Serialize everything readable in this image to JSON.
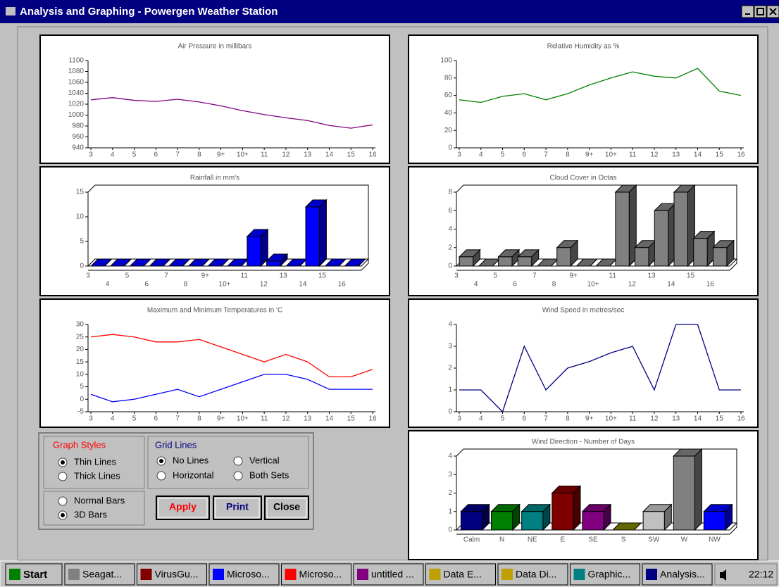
{
  "window": {
    "title": "Analysis and Graphing - Powergen Weather Station"
  },
  "charts": [
    {
      "type": "line",
      "title": "Air Pressure in millibars",
      "categories": [
        "3",
        "4",
        "5",
        "6",
        "7",
        "8",
        "9+",
        "10+",
        "11",
        "12",
        "13",
        "14",
        "15",
        "16"
      ],
      "series": [
        {
          "color": "#800080",
          "values": [
            1028,
            1032,
            1027,
            1025,
            1029,
            1024,
            1017,
            1008,
            1001,
            995,
            990,
            981,
            976,
            982
          ]
        }
      ],
      "ylim": [
        940,
        1100
      ],
      "yticks": [
        940,
        960,
        980,
        1000,
        1020,
        1040,
        1060,
        1080,
        1100
      ]
    },
    {
      "type": "line",
      "title": "Relative Humidity as %",
      "categories": [
        "3",
        "4",
        "5",
        "6",
        "7",
        "8",
        "9+",
        "10+",
        "11",
        "12",
        "13",
        "14",
        "15",
        "16"
      ],
      "series": [
        {
          "color": "#008000",
          "values": [
            55,
            52,
            59,
            62,
            55,
            62,
            72,
            80,
            87,
            82,
            80,
            91,
            65,
            60
          ]
        }
      ],
      "ylim": [
        0,
        100
      ],
      "yticks": [
        0,
        20,
        40,
        60,
        80,
        100
      ]
    },
    {
      "type": "bar3d",
      "title": "Rainfall in mm's",
      "categories": [
        "3",
        "4",
        "5",
        "6",
        "7",
        "8",
        "9+",
        "10+",
        "11",
        "12",
        "13",
        "14",
        "15",
        "16"
      ],
      "values": [
        0,
        0,
        0,
        0,
        0,
        0,
        0,
        0,
        6,
        1,
        0,
        12,
        0,
        0
      ],
      "color": "#0000ff",
      "ylim": [
        0,
        15
      ],
      "yticks": [
        0,
        5,
        10,
        15
      ]
    },
    {
      "type": "bar3d",
      "title": "Cloud Cover in Octas",
      "categories": [
        "3",
        "4",
        "5",
        "6",
        "7",
        "8",
        "9+",
        "10+",
        "11",
        "12",
        "13",
        "14",
        "15",
        "16"
      ],
      "values": [
        1,
        0,
        1,
        1,
        0,
        2,
        0,
        0,
        8,
        2,
        6,
        8,
        3,
        2
      ],
      "color": "#808080",
      "ylim": [
        0,
        8
      ],
      "yticks": [
        0,
        2,
        4,
        6,
        8
      ]
    },
    {
      "type": "line",
      "title": "Maximum and Minimum Temperatures in 'C",
      "categories": [
        "3",
        "4",
        "5",
        "6",
        "7",
        "8",
        "9+",
        "10+",
        "11",
        "12",
        "13",
        "14",
        "15",
        "16"
      ],
      "series": [
        {
          "color": "#ff0000",
          "values": [
            25,
            26,
            25,
            23,
            23,
            24,
            21,
            18,
            15,
            18,
            15,
            9,
            9,
            12
          ]
        },
        {
          "color": "#0000ff",
          "values": [
            2,
            -1,
            0,
            2,
            4,
            1,
            4,
            7,
            10,
            10,
            8,
            4,
            4,
            4
          ]
        }
      ],
      "ylim": [
        -5,
        30
      ],
      "yticks": [
        -5,
        0,
        5,
        10,
        15,
        20,
        25,
        30
      ]
    },
    {
      "type": "line",
      "title": "Wind Speed in metres/sec",
      "categories": [
        "3",
        "4",
        "5",
        "6",
        "7",
        "8",
        "9+",
        "10+",
        "11",
        "12",
        "13",
        "14",
        "15",
        "16"
      ],
      "series": [
        {
          "color": "#000080",
          "values": [
            1,
            1,
            0,
            3,
            1,
            2,
            2.3,
            2.7,
            3,
            1,
            4,
            4,
            1,
            1
          ]
        }
      ],
      "ylim": [
        0,
        4
      ],
      "yticks": [
        0,
        1,
        2,
        3,
        4
      ]
    },
    {
      "type": "bar3d",
      "title": "Wind Direction - Number of Days",
      "categories": [
        "Calm",
        "N",
        "NE",
        "E",
        "SE",
        "S",
        "SW",
        "W",
        "NW"
      ],
      "values": [
        1,
        1,
        1,
        2,
        1,
        0,
        1,
        4,
        1
      ],
      "colors": [
        "#000080",
        "#008000",
        "#008080",
        "#800000",
        "#800080",
        "#808000",
        "#c0c0c0",
        "#808080",
        "#0000ff"
      ],
      "ylim": [
        0,
        4
      ],
      "yticks": [
        0,
        1,
        2,
        3,
        4
      ]
    }
  ],
  "controls": {
    "graph_styles": {
      "title": "Graph Styles",
      "options": [
        {
          "label": "Thin Lines",
          "checked": true
        },
        {
          "label": "Thick Lines",
          "checked": false
        }
      ]
    },
    "bar_styles": {
      "options": [
        {
          "label": "Normal Bars",
          "checked": false
        },
        {
          "label": "3D Bars",
          "checked": true
        }
      ]
    },
    "grid_lines": {
      "title": "Grid Lines",
      "options": [
        {
          "label": "No Lines",
          "checked": true
        },
        {
          "label": "Vertical",
          "checked": false
        },
        {
          "label": "Horizontal",
          "checked": false
        },
        {
          "label": "Both Sets",
          "checked": false
        }
      ]
    },
    "buttons": [
      "Apply",
      "Print",
      "Close"
    ]
  },
  "taskbar": {
    "start": "Start",
    "items": [
      "Seagat...",
      "VirusGu...",
      "Microso...",
      "Microso...",
      "untitled ...",
      "Data E...",
      "Data Di...",
      "Graphic...",
      "Analysis..."
    ],
    "clock": "22:12"
  }
}
